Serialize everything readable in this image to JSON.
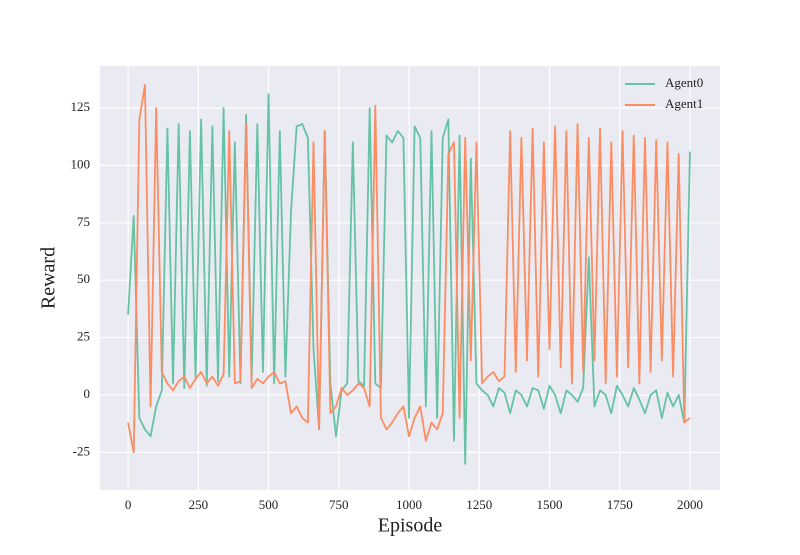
{
  "chart_data": {
    "type": "line",
    "xlabel": "Episode",
    "ylabel": "Reward",
    "x": [
      0,
      20,
      40,
      60,
      80,
      100,
      120,
      140,
      160,
      180,
      200,
      220,
      240,
      260,
      280,
      300,
      320,
      340,
      360,
      380,
      400,
      420,
      440,
      460,
      480,
      500,
      520,
      540,
      560,
      580,
      600,
      620,
      640,
      660,
      680,
      700,
      720,
      740,
      760,
      780,
      800,
      820,
      840,
      860,
      880,
      900,
      920,
      940,
      960,
      980,
      1000,
      1020,
      1040,
      1060,
      1080,
      1100,
      1120,
      1140,
      1160,
      1180,
      1200,
      1220,
      1240,
      1260,
      1280,
      1300,
      1320,
      1340,
      1360,
      1380,
      1400,
      1420,
      1440,
      1460,
      1480,
      1500,
      1520,
      1540,
      1560,
      1580,
      1600,
      1620,
      1640,
      1660,
      1680,
      1700,
      1720,
      1740,
      1760,
      1780,
      1800,
      1820,
      1840,
      1860,
      1880,
      1900,
      1920,
      1940,
      1960,
      1980,
      2000
    ],
    "series": [
      {
        "name": "Agent0",
        "color": "#66c2a5",
        "values": [
          35,
          78,
          -10,
          -15,
          -18,
          -5,
          2,
          116,
          5,
          118,
          3,
          115,
          8,
          120,
          4,
          117,
          6,
          125,
          8,
          110,
          5,
          122,
          7,
          118,
          10,
          131,
          5,
          115,
          8,
          80,
          117,
          118,
          112,
          20,
          -15,
          115,
          5,
          -18,
          2,
          5,
          110,
          6,
          4,
          125,
          5,
          3,
          113,
          110,
          115,
          112,
          -10,
          117,
          112,
          -5,
          115,
          -10,
          112,
          120,
          -20,
          113,
          -30,
          103,
          5,
          2,
          0,
          -5,
          3,
          1,
          -8,
          2,
          0,
          -5,
          3,
          2,
          -6,
          4,
          0,
          -8,
          2,
          0,
          -3,
          3,
          60,
          -5,
          2,
          0,
          -8,
          4,
          0,
          -5,
          3,
          -2,
          -8,
          0,
          2,
          -10,
          1,
          -5,
          0,
          -12,
          106
        ]
      },
      {
        "name": "Agent1",
        "color": "#fc8d62",
        "values": [
          -12,
          -25,
          120,
          135,
          -5,
          125,
          10,
          5,
          2,
          6,
          8,
          3,
          7,
          10,
          5,
          8,
          4,
          9,
          115,
          5,
          6,
          118,
          3,
          7,
          5,
          8,
          10,
          5,
          6,
          -8,
          -5,
          -10,
          -12,
          110,
          -15,
          115,
          -8,
          -5,
          3,
          0,
          2,
          5,
          3,
          -5,
          126,
          -10,
          -15,
          -12,
          -8,
          -5,
          -18,
          -10,
          -5,
          -20,
          -12,
          -15,
          -8,
          105,
          110,
          -10,
          112,
          15,
          110,
          5,
          8,
          10,
          6,
          8,
          115,
          10,
          112,
          15,
          116,
          8,
          110,
          20,
          117,
          12,
          115,
          5,
          118,
          10,
          112,
          15,
          116,
          5,
          110,
          8,
          115,
          12,
          113,
          5,
          112,
          10,
          111,
          15,
          110,
          8,
          105,
          -12,
          -10
        ]
      }
    ],
    "xlim": [
      -100,
      2107
    ],
    "ylim": [
      -41.4,
      143.3
    ],
    "xticks": [
      0,
      250,
      500,
      750,
      1000,
      1250,
      1500,
      1750,
      2000
    ],
    "yticks": [
      -25,
      0,
      25,
      50,
      75,
      100,
      125
    ],
    "grid": true,
    "legend": "upper right"
  }
}
